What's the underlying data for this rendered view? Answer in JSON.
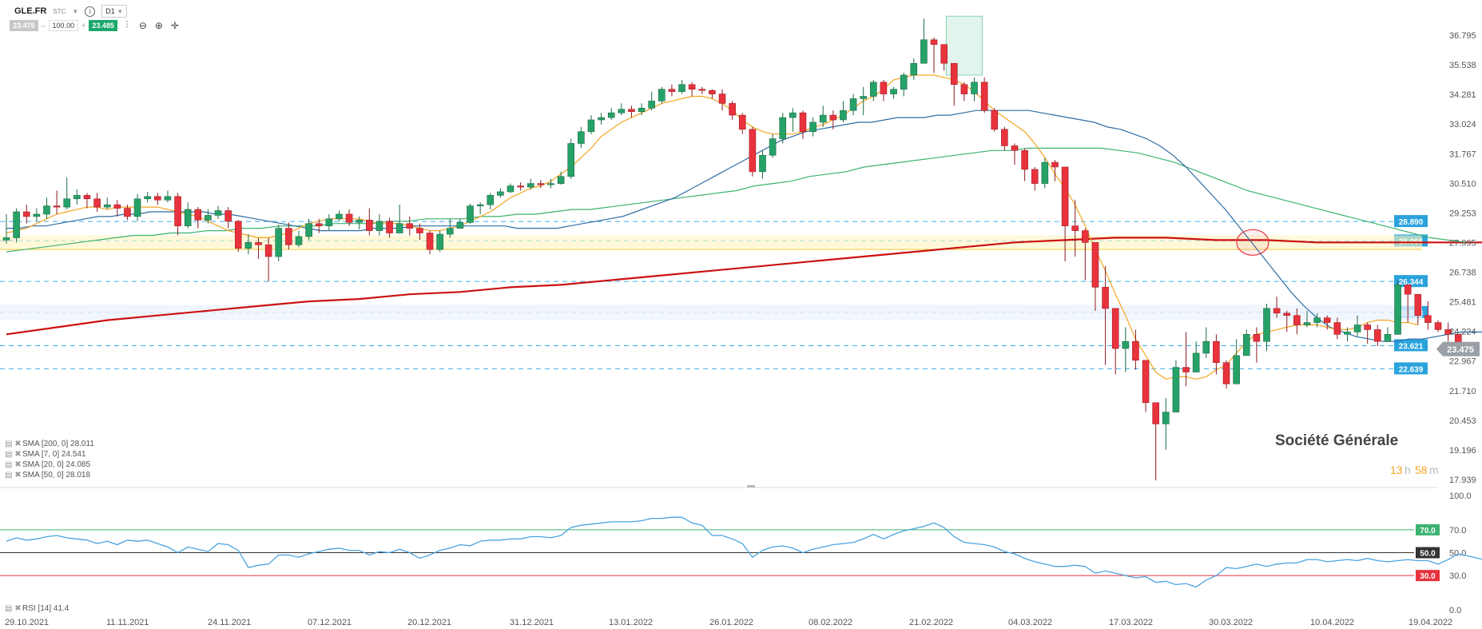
{
  "toolbar": {
    "symbol": "GLE.FR",
    "type": "STC",
    "timeframe": "D1",
    "bid": "23.475",
    "quantity": "100.00",
    "ask": "23.485",
    "icons": [
      "chart-type-icon",
      "zoom-out-icon",
      "zoom-in-icon",
      "crosshair-icon"
    ]
  },
  "chart_title": "Société Générale",
  "countdown": {
    "hours": "13",
    "h_unit": "h",
    "minutes": "58",
    "m_unit": "m"
  },
  "colors": {
    "up": "#26a269",
    "down": "#e8323c",
    "sma7": "#f5a623",
    "sma20": "#2e6da4",
    "sma50": "#3cb371",
    "sma200": "#cc1111",
    "level": "#3daee9",
    "rsi": "#4aa3df"
  },
  "indicators": [
    {
      "label": "SMA [200, 0] 28.011"
    },
    {
      "label": "SMA [7, 0] 24.541"
    },
    {
      "label": "SMA [20, 0] 24.085"
    },
    {
      "label": "SMA [50, 0] 28.018"
    }
  ],
  "rsi_label": "RSI [14] 41.4",
  "chart_data": {
    "type": "candlestick",
    "y_ticks": [
      "36.795",
      "35.538",
      "34.281",
      "33.024",
      "31.767",
      "30.510",
      "29.253",
      "27.995",
      "26.738",
      "25.481",
      "24.224",
      "22.967",
      "21.710",
      "20.453",
      "19.196",
      "17.939"
    ],
    "ylim": [
      17.939,
      37.6
    ],
    "x_ticks": [
      "29.10.2021",
      "11.11.2021",
      "24.11.2021",
      "07.12.2021",
      "20.12.2021",
      "31.12.2021",
      "13.01.2022",
      "26.01.2022",
      "08.02.2022",
      "21.02.2022",
      "04.03.2022",
      "17.03.2022",
      "30.03.2022",
      "10.04.2022",
      "19.04.2022"
    ],
    "horizontal_levels": [
      "28.890",
      "28.065",
      "26.344",
      "25.033",
      "23.621",
      "22.639"
    ],
    "current_price": "23.475",
    "highlight_zone": [
      27.995,
      28.0
    ],
    "candles": [
      [
        28.1,
        28.2,
        29.2,
        27.95
      ],
      [
        28.2,
        29.3,
        29.45,
        28.0
      ],
      [
        29.3,
        29.1,
        29.6,
        28.8
      ],
      [
        29.1,
        29.2,
        29.45,
        28.9
      ],
      [
        29.2,
        29.55,
        29.9,
        29.0
      ],
      [
        29.55,
        29.5,
        30.2,
        29.2
      ],
      [
        29.5,
        29.85,
        30.75,
        29.4
      ],
      [
        29.85,
        30.0,
        30.25,
        29.6
      ],
      [
        30.0,
        29.85,
        30.1,
        29.45
      ],
      [
        29.85,
        29.5,
        30.1,
        29.3
      ],
      [
        29.5,
        29.6,
        29.9,
        29.4
      ],
      [
        29.6,
        29.45,
        29.8,
        29.1
      ],
      [
        29.45,
        29.1,
        29.6,
        28.95
      ],
      [
        29.1,
        29.85,
        30.05,
        28.9
      ],
      [
        29.85,
        29.95,
        30.15,
        29.7
      ],
      [
        29.95,
        29.8,
        30.1,
        29.6
      ],
      [
        29.8,
        29.95,
        30.2,
        29.7
      ],
      [
        29.95,
        28.7,
        30.1,
        28.3
      ],
      [
        28.7,
        29.4,
        29.7,
        28.6
      ],
      [
        29.4,
        28.95,
        29.5,
        28.6
      ],
      [
        28.95,
        29.15,
        29.4,
        28.8
      ],
      [
        29.15,
        29.35,
        29.55,
        29.0
      ],
      [
        29.35,
        28.9,
        29.5,
        28.6
      ],
      [
        28.9,
        27.75,
        28.95,
        27.6
      ],
      [
        27.75,
        28.0,
        28.35,
        27.5
      ],
      [
        28.0,
        27.9,
        28.2,
        27.3
      ],
      [
        27.9,
        27.4,
        28.2,
        26.35
      ],
      [
        27.4,
        28.6,
        28.75,
        27.2
      ],
      [
        28.6,
        27.9,
        28.85,
        27.7
      ],
      [
        27.9,
        28.25,
        28.5,
        27.8
      ],
      [
        28.25,
        28.8,
        29.0,
        28.1
      ],
      [
        28.8,
        28.7,
        29.0,
        28.4
      ],
      [
        28.7,
        29.0,
        29.2,
        28.5
      ],
      [
        29.0,
        29.2,
        29.35,
        28.9
      ],
      [
        29.2,
        28.85,
        29.4,
        28.7
      ],
      [
        28.85,
        28.95,
        29.1,
        28.55
      ],
      [
        28.95,
        28.5,
        29.45,
        28.3
      ],
      [
        28.5,
        28.9,
        29.2,
        28.3
      ],
      [
        28.9,
        28.4,
        29.05,
        28.2
      ],
      [
        28.4,
        28.8,
        29.6,
        28.7
      ],
      [
        28.8,
        28.6,
        29.1,
        28.3
      ],
      [
        28.6,
        28.4,
        28.8,
        28.1
      ],
      [
        28.4,
        27.7,
        28.5,
        27.5
      ],
      [
        27.7,
        28.35,
        28.5,
        27.6
      ],
      [
        28.35,
        28.6,
        29.0,
        28.2
      ],
      [
        28.6,
        28.85,
        29.0,
        28.6
      ],
      [
        28.85,
        29.55,
        29.65,
        28.8
      ],
      [
        29.55,
        29.6,
        29.7,
        29.2
      ],
      [
        29.6,
        30.0,
        30.1,
        29.4
      ],
      [
        30.0,
        30.15,
        30.3,
        29.9
      ],
      [
        30.15,
        30.4,
        30.5,
        30.1
      ],
      [
        30.4,
        30.35,
        30.55,
        30.2
      ],
      [
        30.35,
        30.5,
        30.7,
        30.25
      ],
      [
        30.5,
        30.45,
        30.65,
        30.3
      ],
      [
        30.45,
        30.5,
        30.7,
        30.3
      ],
      [
        30.5,
        30.8,
        31.0,
        30.45
      ],
      [
        30.8,
        32.2,
        32.4,
        30.7
      ],
      [
        32.2,
        32.7,
        32.9,
        32.0
      ],
      [
        32.7,
        33.2,
        33.4,
        32.6
      ],
      [
        33.2,
        33.3,
        33.5,
        33.0
      ],
      [
        33.3,
        33.5,
        33.7,
        33.2
      ],
      [
        33.5,
        33.65,
        33.9,
        33.4
      ],
      [
        33.65,
        33.55,
        33.8,
        33.3
      ],
      [
        33.55,
        33.7,
        33.9,
        33.4
      ],
      [
        33.7,
        34.0,
        34.4,
        33.6
      ],
      [
        34.0,
        34.5,
        34.6,
        33.9
      ],
      [
        34.5,
        34.4,
        34.7,
        34.2
      ],
      [
        34.4,
        34.7,
        34.9,
        34.3
      ],
      [
        34.7,
        34.5,
        34.8,
        34.2
      ],
      [
        34.5,
        34.45,
        34.6,
        34.3
      ],
      [
        34.45,
        34.3,
        34.5,
        34.1
      ],
      [
        34.3,
        33.9,
        34.5,
        33.6
      ],
      [
        33.9,
        33.4,
        34.0,
        33.2
      ],
      [
        33.4,
        32.8,
        33.5,
        32.6
      ],
      [
        32.8,
        31.0,
        32.9,
        30.8
      ],
      [
        31.0,
        31.7,
        31.9,
        30.7
      ],
      [
        31.7,
        32.4,
        32.6,
        31.6
      ],
      [
        32.4,
        33.3,
        33.5,
        32.2
      ],
      [
        33.3,
        33.5,
        33.7,
        32.7
      ],
      [
        33.5,
        32.7,
        33.6,
        32.4
      ],
      [
        32.7,
        33.1,
        33.3,
        32.5
      ],
      [
        33.1,
        33.4,
        33.8,
        32.9
      ],
      [
        33.4,
        33.2,
        33.6,
        32.8
      ],
      [
        33.2,
        33.6,
        34.0,
        33.1
      ],
      [
        33.6,
        34.1,
        34.3,
        33.4
      ],
      [
        34.1,
        34.2,
        34.6,
        33.4
      ],
      [
        34.2,
        34.8,
        34.9,
        34.0
      ],
      [
        34.8,
        34.3,
        34.9,
        34.0
      ],
      [
        34.3,
        34.5,
        34.6,
        34.1
      ],
      [
        34.5,
        35.1,
        35.2,
        34.2
      ],
      [
        35.1,
        35.6,
        35.8,
        34.9
      ],
      [
        35.6,
        36.6,
        37.5,
        36.3
      ],
      [
        36.6,
        36.4,
        36.7,
        35.2
      ],
      [
        36.4,
        35.6,
        36.1,
        35.3
      ],
      [
        35.6,
        34.7,
        34.9,
        33.8
      ],
      [
        34.7,
        34.3,
        34.8,
        34.0
      ],
      [
        34.3,
        34.8,
        35.0,
        34.0
      ],
      [
        34.8,
        33.6,
        35.0,
        33.5
      ],
      [
        33.6,
        32.8,
        33.7,
        32.7
      ],
      [
        32.8,
        32.1,
        32.9,
        31.9
      ],
      [
        32.1,
        31.9,
        32.2,
        31.3
      ],
      [
        31.9,
        31.1,
        32.0,
        30.6
      ],
      [
        31.1,
        30.5,
        31.2,
        30.2
      ],
      [
        30.5,
        31.4,
        31.6,
        30.3
      ],
      [
        31.4,
        31.2,
        31.5,
        30.6
      ],
      [
        31.2,
        28.7,
        29.6,
        27.2
      ],
      [
        28.7,
        28.5,
        29.8,
        27.4
      ],
      [
        28.5,
        28.0,
        28.6,
        26.4
      ],
      [
        28.0,
        26.1,
        27.4,
        25.1
      ],
      [
        26.1,
        25.2,
        27.0,
        22.8
      ],
      [
        25.2,
        23.5,
        24.6,
        22.4
      ],
      [
        23.5,
        23.8,
        24.4,
        22.5
      ],
      [
        23.8,
        23.0,
        24.3,
        22.6
      ],
      [
        23.0,
        21.2,
        22.9,
        20.8
      ],
      [
        21.2,
        20.3,
        20.6,
        17.9
      ],
      [
        20.3,
        20.8,
        21.4,
        19.2
      ],
      [
        20.8,
        22.7,
        23.0,
        20.8
      ],
      [
        22.7,
        22.5,
        24.2,
        21.9
      ],
      [
        22.5,
        23.3,
        23.8,
        22.6
      ],
      [
        23.3,
        23.8,
        24.4,
        23.1
      ],
      [
        23.8,
        22.9,
        24.1,
        22.4
      ],
      [
        22.9,
        22.0,
        23.0,
        21.8
      ],
      [
        22.0,
        23.2,
        23.9,
        22.7
      ],
      [
        23.2,
        24.1,
        24.3,
        23.2
      ],
      [
        24.1,
        23.8,
        24.4,
        22.9
      ],
      [
        23.8,
        25.2,
        25.4,
        23.4
      ],
      [
        25.2,
        25.0,
        25.7,
        24.8
      ],
      [
        25.0,
        24.9,
        25.1,
        24.2
      ],
      [
        24.9,
        24.5,
        25.2,
        24.1
      ],
      [
        24.5,
        24.6,
        25.1,
        24.4
      ],
      [
        24.6,
        24.8,
        25.0,
        24.4
      ],
      [
        24.8,
        24.6,
        24.9,
        24.3
      ],
      [
        24.6,
        24.1,
        24.8,
        23.9
      ],
      [
        24.1,
        24.2,
        24.4,
        23.8
      ],
      [
        24.2,
        24.5,
        24.9,
        24.0
      ],
      [
        24.5,
        24.3,
        24.6,
        23.7
      ],
      [
        24.3,
        23.8,
        24.5,
        23.6
      ],
      [
        23.8,
        24.1,
        24.4,
        23.8
      ],
      [
        24.1,
        26.2,
        26.4,
        24.2
      ],
      [
        26.2,
        25.8,
        26.0,
        24.6
      ],
      [
        25.8,
        24.9,
        25.2,
        24.5
      ],
      [
        24.9,
        24.6,
        25.5,
        24.3
      ],
      [
        24.6,
        24.3,
        24.7,
        24.2
      ],
      [
        24.3,
        24.1,
        24.6,
        23.8
      ],
      [
        24.1,
        23.48,
        23.65,
        23.4
      ]
    ],
    "sma7": [
      28.4,
      28.5,
      28.6,
      28.8,
      29.0,
      29.2,
      29.3,
      29.4,
      29.5,
      29.5,
      29.4,
      29.5,
      29.5,
      29.5,
      29.5,
      29.5,
      29.4,
      29.3,
      29.2,
      29.1,
      28.9,
      28.7,
      28.5,
      28.4,
      28.3,
      28.2,
      28.2,
      28.3,
      28.4,
      28.6,
      28.8,
      28.9,
      29.0,
      29.0,
      29.0,
      29.0,
      28.9,
      28.8,
      28.8,
      28.8,
      28.7,
      28.6,
      28.5,
      28.5,
      28.6,
      28.7,
      28.9,
      29.1,
      29.3,
      29.6,
      29.9,
      30.1,
      30.3,
      30.4,
      30.6,
      30.9,
      31.2,
      31.6,
      32.0,
      32.5,
      32.8,
      33.1,
      33.3,
      33.5,
      33.7,
      33.9,
      34.0,
      34.1,
      34.2,
      34.2,
      34.1,
      33.9,
      33.6,
      33.2,
      32.9,
      32.7,
      32.6,
      32.6,
      32.6,
      32.7,
      32.9,
      33.0,
      33.2,
      33.4,
      33.7,
      34.0,
      34.2,
      34.5,
      34.9,
      35.0,
      35.1,
      35.1,
      35.1,
      35.0,
      34.9,
      34.7,
      34.4,
      34.0,
      33.6,
      33.3,
      33.0,
      32.7,
      32.2,
      31.6,
      30.9,
      30.3,
      29.6,
      28.7,
      27.7,
      26.8,
      25.8,
      24.9,
      23.9,
      23.2,
      22.5,
      22.2,
      22.3,
      22.3,
      22.2,
      22.3,
      22.6,
      22.8,
      23.3,
      23.8,
      24.1,
      24.2,
      24.3,
      24.4,
      24.5,
      24.5,
      24.5,
      24.4,
      24.3,
      24.3,
      24.4,
      24.6,
      24.7,
      24.7,
      24.6,
      24.6,
      24.5
    ],
    "sma20": [
      28.6,
      28.6,
      28.7,
      28.7,
      28.8,
      28.9,
      29.0,
      29.1,
      29.1,
      29.2,
      29.2,
      29.3,
      29.3,
      29.3,
      29.3,
      29.3,
      29.2,
      29.2,
      29.1,
      29.0,
      28.9,
      28.8,
      28.7,
      28.6,
      28.5,
      28.5,
      28.5,
      28.5,
      28.6,
      28.6,
      28.6,
      28.7,
      28.7,
      28.7,
      28.7,
      28.7,
      28.7,
      28.7,
      28.7,
      28.6,
      28.6,
      28.6,
      28.6,
      28.7,
      28.8,
      28.9,
      29.0,
      29.1,
      29.3,
      29.5,
      29.7,
      29.9,
      30.2,
      30.5,
      30.8,
      31.1,
      31.4,
      31.7,
      32.0,
      32.3,
      32.5,
      32.7,
      32.8,
      32.9,
      33.0,
      33.1,
      33.1,
      33.2,
      33.3,
      33.3,
      33.3,
      33.4,
      33.4,
      33.5,
      33.6,
      33.6,
      33.6,
      33.6,
      33.6,
      33.5,
      33.4,
      33.3,
      33.2,
      33.1,
      32.9,
      32.8,
      32.6,
      32.4,
      32.1,
      31.7,
      31.2,
      30.6,
      30.0,
      29.4,
      28.7,
      28.0,
      27.3,
      26.6,
      25.9,
      25.3,
      24.8,
      24.4,
      24.2,
      24.0,
      23.9,
      23.8,
      23.8,
      23.9,
      23.9,
      24.0,
      24.1,
      24.2,
      24.2,
      24.2,
      24.1,
      24.1,
      24.1
    ],
    "sma50": [
      27.6,
      27.7,
      27.8,
      27.9,
      28.0,
      28.1,
      28.2,
      28.3,
      28.3,
      28.4,
      28.4,
      28.5,
      28.5,
      28.6,
      28.6,
      28.7,
      28.7,
      28.7,
      28.8,
      28.8,
      28.8,
      28.9,
      28.9,
      29.0,
      29.0,
      29.0,
      29.1,
      29.1,
      29.2,
      29.2,
      29.3,
      29.4,
      29.4,
      29.5,
      29.6,
      29.7,
      29.8,
      29.9,
      30.0,
      30.1,
      30.2,
      30.4,
      30.5,
      30.6,
      30.8,
      30.9,
      31.0,
      31.2,
      31.3,
      31.4,
      31.5,
      31.6,
      31.7,
      31.8,
      31.9,
      31.9,
      32.0,
      32.0,
      32.0,
      32.0,
      32.0,
      31.9,
      31.8,
      31.6,
      31.4,
      31.1,
      30.8,
      30.5,
      30.2,
      30.0,
      29.8,
      29.6,
      29.4,
      29.2,
      29.0,
      28.8,
      28.6,
      28.4,
      28.2,
      28.1,
      28.0
    ],
    "sma200": [
      24.1,
      24.4,
      24.7,
      24.9,
      25.1,
      25.3,
      25.5,
      25.6,
      25.8,
      25.9,
      26.1,
      26.2,
      26.4,
      26.6,
      26.8,
      27.0,
      27.2,
      27.4,
      27.6,
      27.8,
      28.0,
      28.1,
      28.2,
      28.2,
      28.1,
      28.1,
      28.0,
      28.0,
      28.0,
      28.0,
      28.0
    ],
    "rsi": {
      "ticks": [
        "100.0",
        "70.0",
        "50.0",
        "30.0",
        "0.0"
      ],
      "levels": [
        "70.0",
        "50.0",
        "30.0"
      ],
      "values": [
        60,
        63,
        61,
        62,
        64,
        65,
        63,
        62,
        61,
        58,
        60,
        57,
        61,
        60,
        61,
        58,
        55,
        50,
        55,
        53,
        51,
        58,
        57,
        52,
        37,
        39,
        40,
        48,
        48,
        46,
        49,
        51,
        53,
        54,
        52,
        52,
        48,
        51,
        50,
        53,
        50,
        45,
        48,
        52,
        54,
        57,
        56,
        60,
        61,
        61,
        62,
        62,
        64,
        64,
        63,
        65,
        72,
        74,
        75,
        76,
        77,
        77,
        77,
        78,
        80,
        80,
        81,
        81,
        76,
        74,
        65,
        65,
        62,
        58,
        46,
        52,
        55,
        56,
        54,
        50,
        53,
        55,
        57,
        58,
        59,
        62,
        66,
        62,
        66,
        69,
        71,
        73,
        76,
        72,
        64,
        59,
        58,
        57,
        55,
        51,
        49,
        45,
        42,
        40,
        38,
        38,
        39,
        38,
        32,
        34,
        32,
        30,
        28,
        29,
        24,
        25,
        22,
        23,
        20,
        26,
        30,
        37,
        36,
        38,
        40,
        38,
        40,
        41,
        41,
        44,
        44,
        42,
        43,
        44,
        43,
        45,
        43,
        42,
        43,
        44,
        43,
        43,
        40,
        44,
        49,
        47,
        45,
        43,
        44,
        42,
        41
      ]
    }
  }
}
